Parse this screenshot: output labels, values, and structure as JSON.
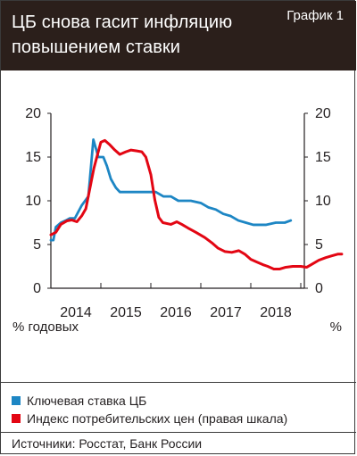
{
  "header": {
    "title": "ЦБ снова гасит инфляцию повышением ставки",
    "figure_label": "График 1"
  },
  "chart_data": {
    "type": "line",
    "x_ticks": [
      "2014",
      "2015",
      "2016",
      "2017",
      "2018"
    ],
    "left_axis": {
      "ticks": [
        "20",
        "15",
        "10",
        "5",
        "0"
      ],
      "range": [
        0,
        20
      ],
      "unit_label": "% годовых"
    },
    "right_axis": {
      "ticks": [
        "20",
        "15",
        "10",
        "5",
        "0"
      ],
      "range": [
        0,
        20
      ],
      "unit_label": "%"
    },
    "series": [
      {
        "name": "Ключевая ставка ЦБ",
        "color": "#1d86c4",
        "points": [
          [
            0.0,
            5.5
          ],
          [
            0.05,
            5.5
          ],
          [
            0.1,
            7.0
          ],
          [
            0.2,
            7.5
          ],
          [
            0.3,
            7.75
          ],
          [
            0.38,
            8.0
          ],
          [
            0.48,
            8.0
          ],
          [
            0.62,
            9.5
          ],
          [
            0.75,
            10.5
          ],
          [
            0.85,
            17.0
          ],
          [
            0.95,
            15.0
          ],
          [
            1.05,
            15.0
          ],
          [
            1.12,
            14.0
          ],
          [
            1.2,
            12.5
          ],
          [
            1.3,
            11.5
          ],
          [
            1.38,
            11.0
          ],
          [
            1.55,
            11.0
          ],
          [
            1.75,
            11.0
          ],
          [
            2.0,
            11.0
          ],
          [
            2.1,
            11.0
          ],
          [
            2.25,
            10.5
          ],
          [
            2.4,
            10.5
          ],
          [
            2.55,
            10.0
          ],
          [
            2.8,
            10.0
          ],
          [
            3.0,
            9.75
          ],
          [
            3.15,
            9.25
          ],
          [
            3.3,
            9.0
          ],
          [
            3.45,
            8.5
          ],
          [
            3.6,
            8.25
          ],
          [
            3.75,
            7.75
          ],
          [
            3.9,
            7.5
          ],
          [
            4.05,
            7.25
          ],
          [
            4.3,
            7.25
          ],
          [
            4.5,
            7.5
          ],
          [
            4.68,
            7.5
          ],
          [
            4.8,
            7.75
          ]
        ]
      },
      {
        "name": "Индекс потребительских цен (правая шкала)",
        "color": "#e30613",
        "points": [
          [
            0.0,
            6.1
          ],
          [
            0.1,
            6.4
          ],
          [
            0.2,
            7.3
          ],
          [
            0.32,
            7.7
          ],
          [
            0.42,
            7.8
          ],
          [
            0.52,
            7.6
          ],
          [
            0.62,
            8.3
          ],
          [
            0.7,
            9.1
          ],
          [
            0.78,
            11.4
          ],
          [
            0.86,
            13.7
          ],
          [
            0.92,
            15.0
          ],
          [
            1.0,
            16.7
          ],
          [
            1.08,
            16.9
          ],
          [
            1.18,
            16.4
          ],
          [
            1.28,
            15.8
          ],
          [
            1.38,
            15.3
          ],
          [
            1.5,
            15.6
          ],
          [
            1.6,
            15.8
          ],
          [
            1.72,
            15.7
          ],
          [
            1.82,
            15.6
          ],
          [
            1.9,
            15.0
          ],
          [
            2.0,
            13.0
          ],
          [
            2.08,
            10.1
          ],
          [
            2.16,
            8.1
          ],
          [
            2.24,
            7.5
          ],
          [
            2.4,
            7.3
          ],
          [
            2.52,
            7.6
          ],
          [
            2.62,
            7.3
          ],
          [
            2.74,
            6.9
          ],
          [
            2.9,
            6.4
          ],
          [
            3.08,
            5.8
          ],
          [
            3.22,
            5.2
          ],
          [
            3.34,
            4.6
          ],
          [
            3.48,
            4.2
          ],
          [
            3.62,
            4.1
          ],
          [
            3.76,
            4.3
          ],
          [
            3.88,
            3.9
          ],
          [
            4.0,
            3.3
          ],
          [
            4.12,
            3.0
          ],
          [
            4.24,
            2.7
          ],
          [
            4.34,
            2.5
          ],
          [
            4.46,
            2.2
          ],
          [
            4.58,
            2.2
          ],
          [
            4.7,
            2.4
          ],
          [
            4.84,
            2.5
          ],
          [
            5.0,
            2.5
          ],
          [
            5.12,
            2.4
          ],
          [
            5.24,
            2.8
          ],
          [
            5.36,
            3.2
          ],
          [
            5.5,
            3.5
          ],
          [
            5.62,
            3.7
          ],
          [
            5.74,
            3.9
          ],
          [
            5.82,
            3.9
          ]
        ]
      }
    ]
  },
  "legend": {
    "items": [
      {
        "label": "Ключевая ставка ЦБ",
        "color": "#1d86c4"
      },
      {
        "label": "Индекс потребительских цен (правая шкала)",
        "color": "#e30613"
      }
    ]
  },
  "source": {
    "label": "Источники: Росстат, Банк России"
  }
}
